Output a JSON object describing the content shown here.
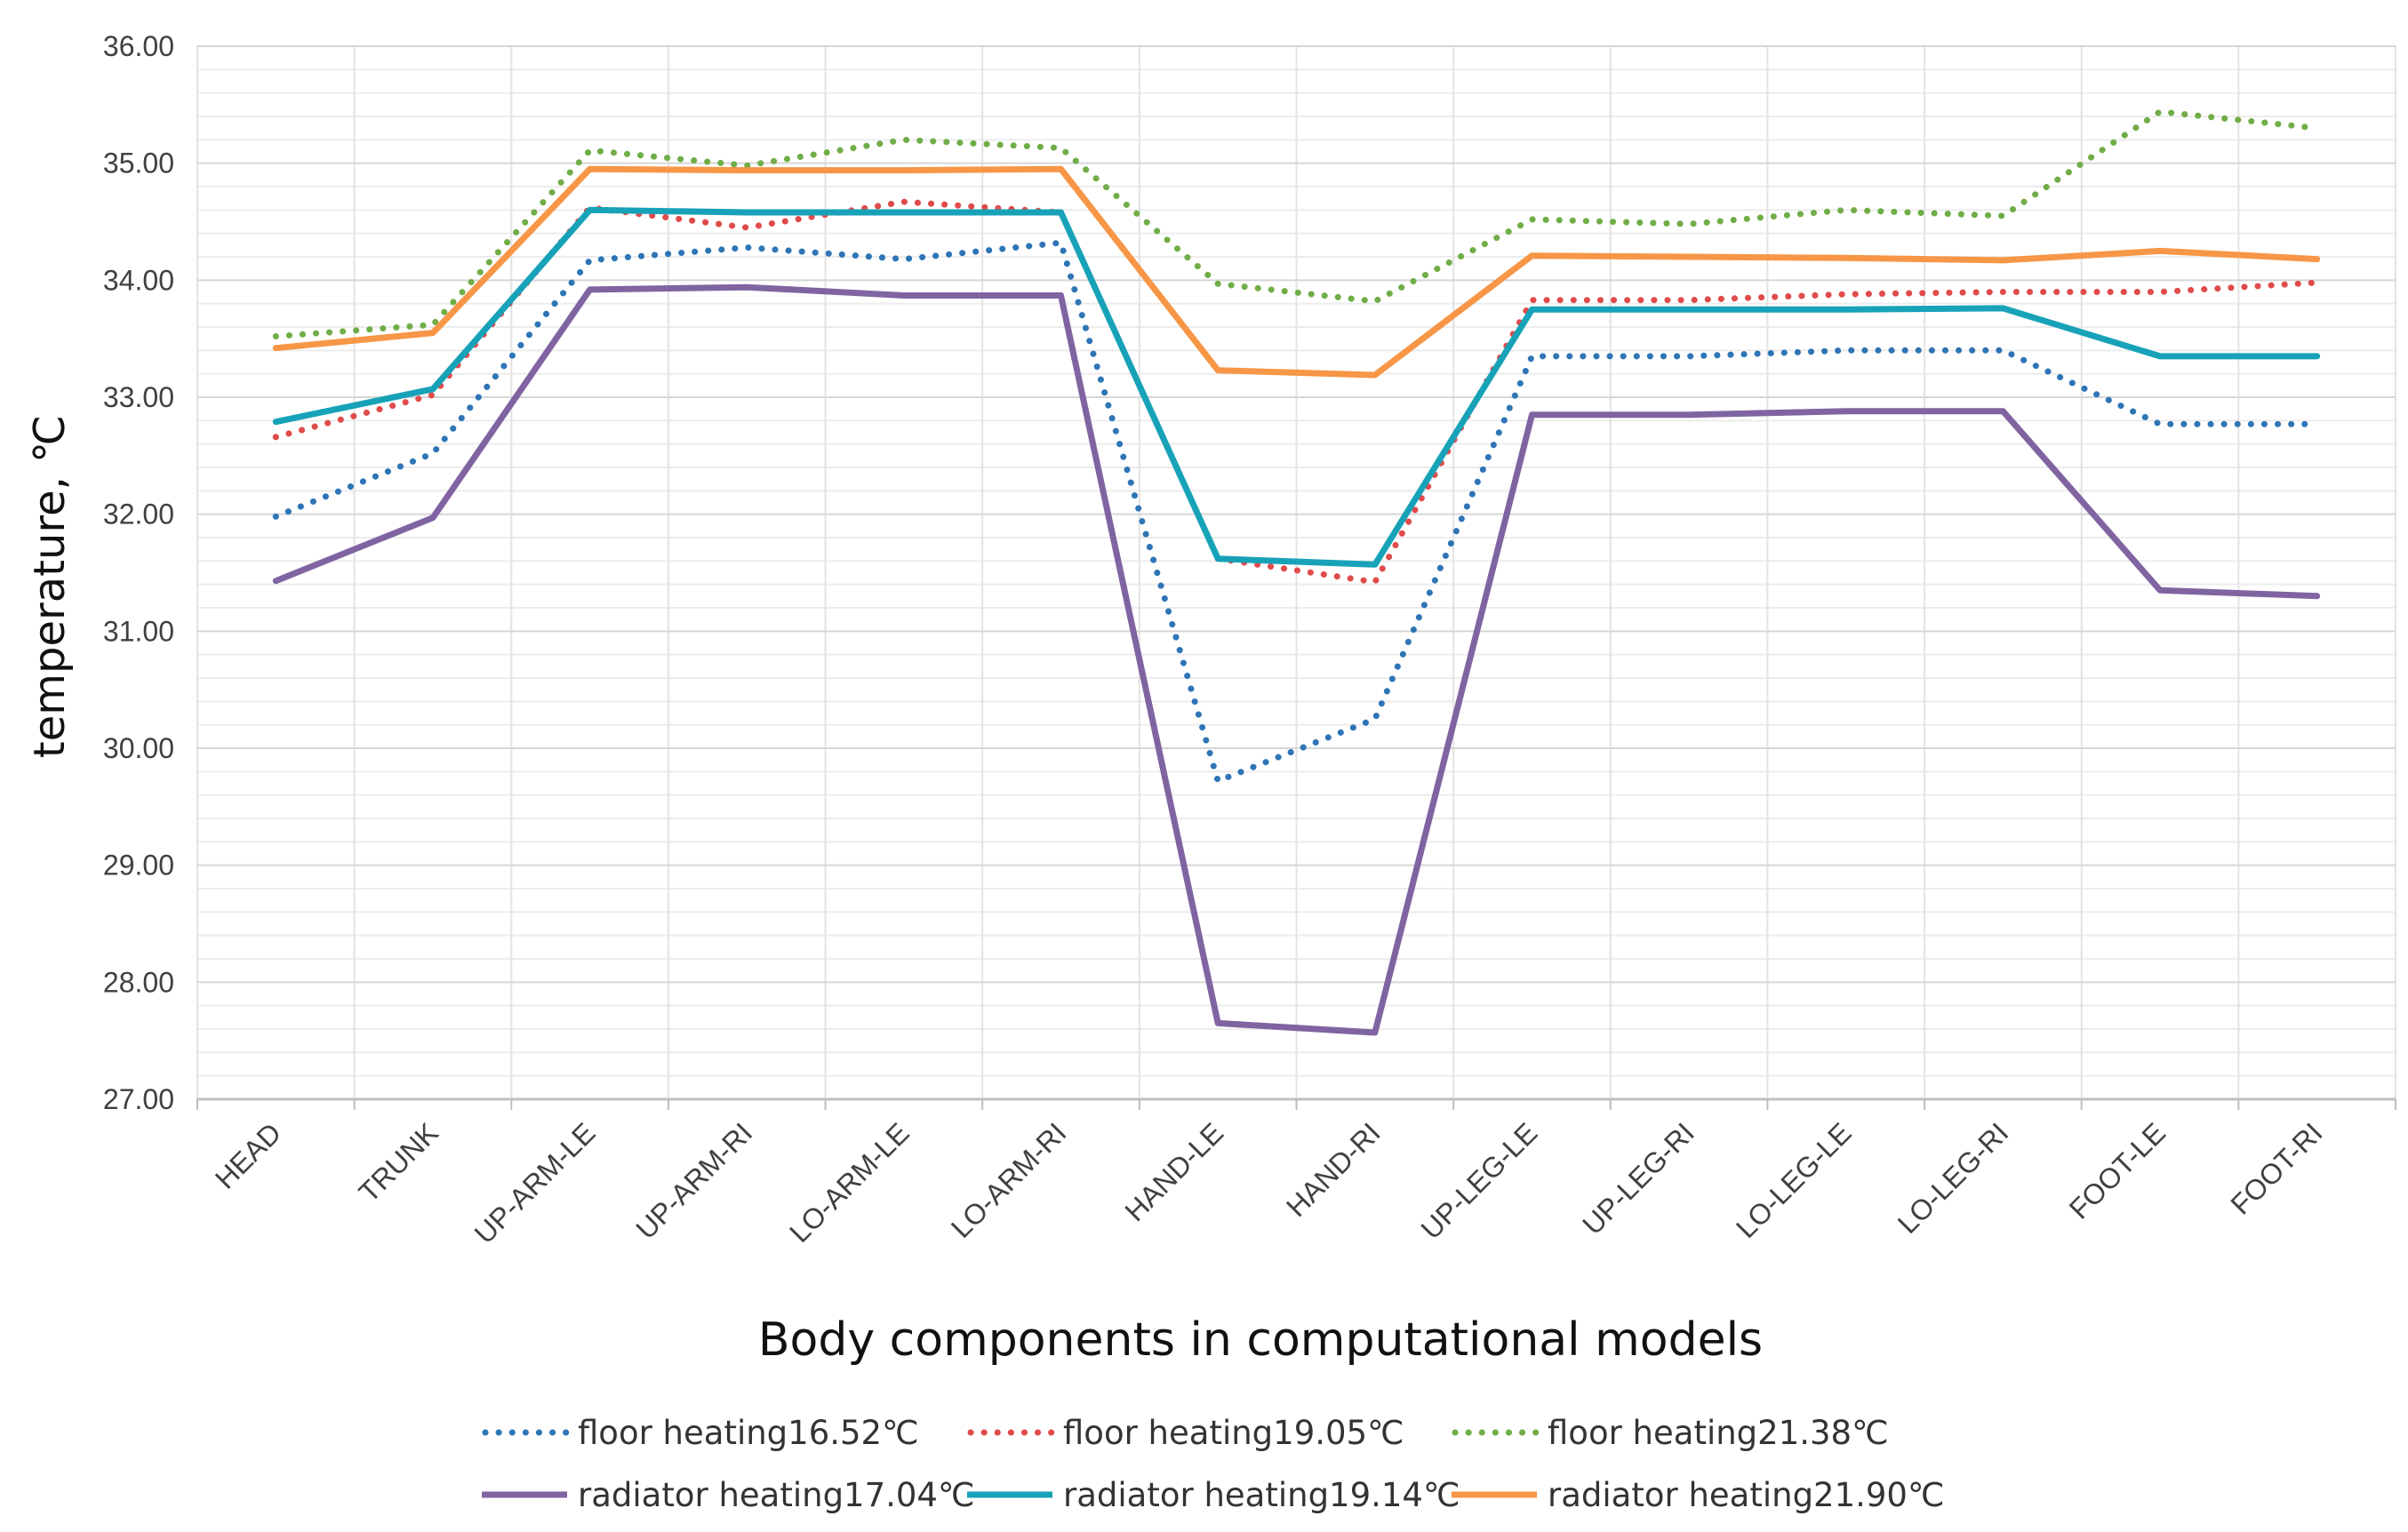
{
  "chart_data": {
    "type": "line",
    "title": "",
    "xlabel": "Body components in computational models",
    "ylabel": "temperature, ℃",
    "ylim": [
      27,
      36
    ],
    "ytick_step": 1,
    "ytick_labels": [
      "27.00",
      "28.00",
      "29.00",
      "30.00",
      "31.00",
      "32.00",
      "33.00",
      "34.00",
      "35.00",
      "36.00"
    ],
    "grid": true,
    "legend_position": "bottom",
    "categories": [
      "HEAD",
      "TRUNK",
      "UP-ARM-LE",
      "UP-ARM-RI",
      "LO-ARM-LE",
      "LO-ARM-RI",
      "HAND-LE",
      "HAND-RI",
      "UP-LEG-LE",
      "UP-LEG-RI",
      "LO-LEG-LE",
      "LO-LEG-RI",
      "FOOT-LE",
      "FOOT-RI"
    ],
    "series": [
      {
        "name": "floor heating16.52℃",
        "color": "#2E75B6",
        "style": "dotted",
        "values": [
          31.98,
          32.52,
          34.17,
          34.28,
          34.18,
          34.32,
          29.72,
          30.25,
          33.35,
          33.35,
          33.4,
          33.4,
          32.77,
          32.77
        ]
      },
      {
        "name": "floor heating19.05℃",
        "color": "#E04B4B",
        "style": "dotted",
        "values": [
          32.66,
          33.02,
          34.62,
          34.45,
          34.67,
          34.58,
          31.62,
          31.42,
          33.83,
          33.83,
          33.88,
          33.9,
          33.9,
          33.98
        ]
      },
      {
        "name": "floor heating21.38℃",
        "color": "#70AD47",
        "style": "dotted",
        "values": [
          33.52,
          33.62,
          35.11,
          34.98,
          35.2,
          35.13,
          33.97,
          33.82,
          34.52,
          34.48,
          34.6,
          34.55,
          35.44,
          35.3
        ]
      },
      {
        "name": "radiator heating17.04℃",
        "color": "#8064A2",
        "style": "solid",
        "values": [
          31.43,
          31.97,
          33.92,
          33.94,
          33.87,
          33.87,
          27.65,
          27.57,
          32.85,
          32.85,
          32.88,
          32.88,
          31.35,
          31.3
        ]
      },
      {
        "name": "radiator heating19.14℃",
        "color": "#17A2B8",
        "style": "solid",
        "values": [
          32.79,
          33.07,
          34.6,
          34.58,
          34.58,
          34.58,
          31.62,
          31.57,
          33.75,
          33.75,
          33.75,
          33.76,
          33.35,
          33.35
        ]
      },
      {
        "name": "radiator heating21.90℃",
        "color": "#F79646",
        "style": "solid",
        "values": [
          33.42,
          33.55,
          34.95,
          34.94,
          34.94,
          34.95,
          33.23,
          33.19,
          34.21,
          34.2,
          34.19,
          34.17,
          34.25,
          34.18
        ]
      }
    ]
  }
}
